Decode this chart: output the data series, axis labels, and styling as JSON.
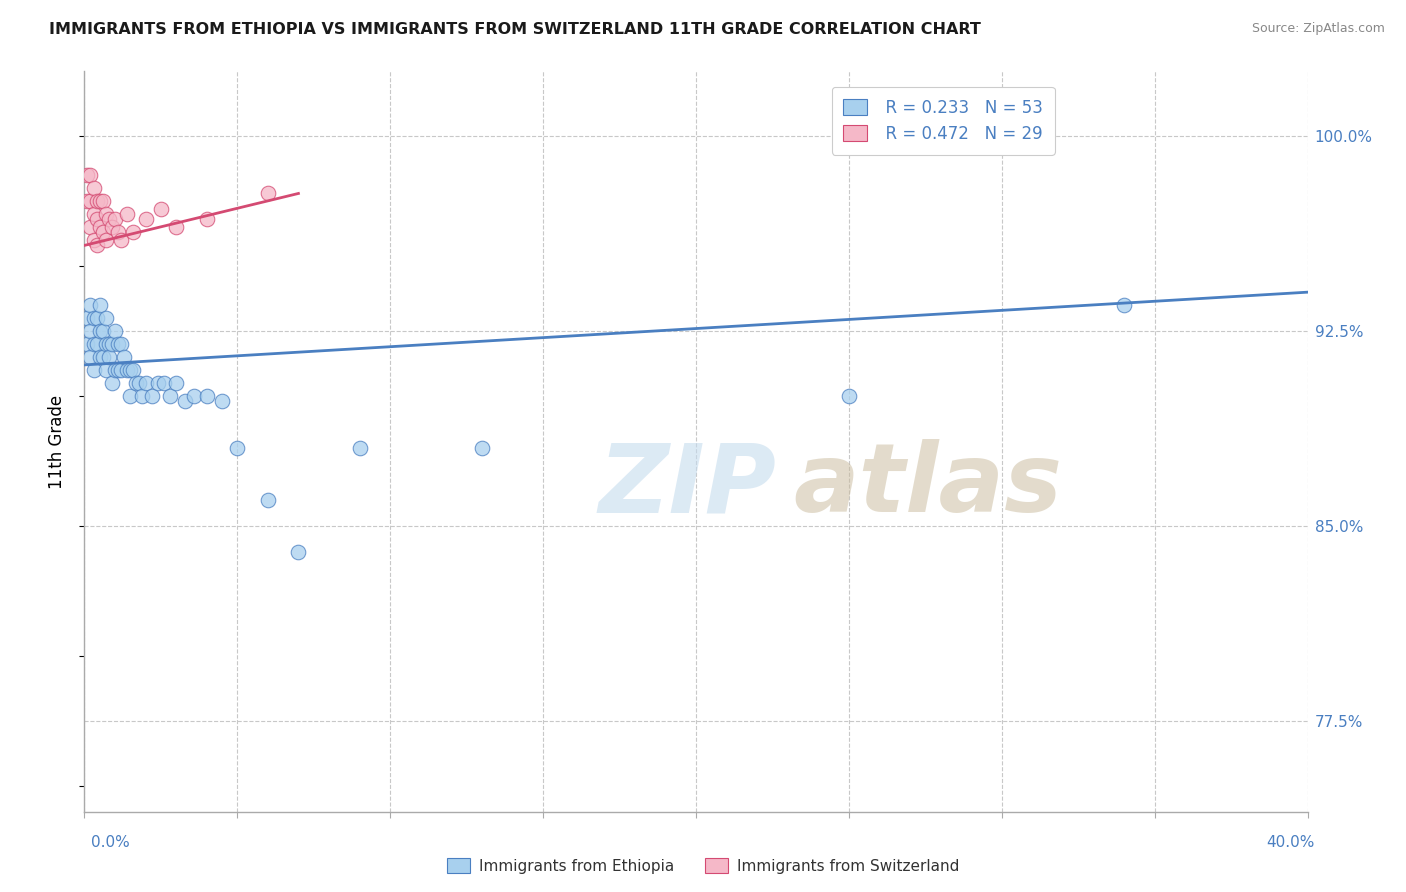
{
  "title": "IMMIGRANTS FROM ETHIOPIA VS IMMIGRANTS FROM SWITZERLAND 11TH GRADE CORRELATION CHART",
  "source": "Source: ZipAtlas.com",
  "ylabel": "11th Grade",
  "ylabel_right_ticks": [
    "100.0%",
    "92.5%",
    "85.0%",
    "77.5%"
  ],
  "ylabel_right_vals": [
    1.0,
    0.925,
    0.85,
    0.775
  ],
  "xmin": 0.0,
  "xmax": 0.4,
  "ymin": 0.74,
  "ymax": 1.025,
  "legend_r_eth": "R = 0.233",
  "legend_n_eth": "N = 53",
  "legend_r_swi": "R = 0.472",
  "legend_n_swi": "N = 29",
  "ethiopia_color": "#a8d0ee",
  "switzerland_color": "#f5b8c8",
  "trendline_ethiopia_color": "#4a7fc1",
  "trendline_switzerland_color": "#d44a72",
  "eth_x": [
    0.001,
    0.001,
    0.002,
    0.002,
    0.002,
    0.003,
    0.003,
    0.003,
    0.004,
    0.004,
    0.005,
    0.005,
    0.005,
    0.006,
    0.006,
    0.007,
    0.007,
    0.007,
    0.008,
    0.008,
    0.009,
    0.009,
    0.01,
    0.01,
    0.011,
    0.011,
    0.012,
    0.012,
    0.013,
    0.014,
    0.015,
    0.015,
    0.016,
    0.017,
    0.018,
    0.019,
    0.02,
    0.022,
    0.024,
    0.026,
    0.028,
    0.03,
    0.033,
    0.036,
    0.04,
    0.045,
    0.05,
    0.06,
    0.07,
    0.09,
    0.13,
    0.25,
    0.34
  ],
  "eth_y": [
    0.93,
    0.92,
    0.935,
    0.925,
    0.915,
    0.93,
    0.92,
    0.91,
    0.93,
    0.92,
    0.935,
    0.925,
    0.915,
    0.925,
    0.915,
    0.93,
    0.92,
    0.91,
    0.92,
    0.915,
    0.92,
    0.905,
    0.925,
    0.91,
    0.92,
    0.91,
    0.92,
    0.91,
    0.915,
    0.91,
    0.91,
    0.9,
    0.91,
    0.905,
    0.905,
    0.9,
    0.905,
    0.9,
    0.905,
    0.905,
    0.9,
    0.905,
    0.898,
    0.9,
    0.9,
    0.898,
    0.88,
    0.86,
    0.84,
    0.88,
    0.88,
    0.9,
    0.935
  ],
  "swi_x": [
    0.001,
    0.001,
    0.002,
    0.002,
    0.002,
    0.003,
    0.003,
    0.003,
    0.004,
    0.004,
    0.004,
    0.005,
    0.005,
    0.006,
    0.006,
    0.007,
    0.007,
    0.008,
    0.009,
    0.01,
    0.011,
    0.012,
    0.014,
    0.016,
    0.02,
    0.025,
    0.03,
    0.04,
    0.06
  ],
  "swi_y": [
    0.985,
    0.975,
    0.985,
    0.975,
    0.965,
    0.98,
    0.97,
    0.96,
    0.975,
    0.968,
    0.958,
    0.975,
    0.965,
    0.975,
    0.963,
    0.97,
    0.96,
    0.968,
    0.965,
    0.968,
    0.963,
    0.96,
    0.97,
    0.963,
    0.968,
    0.972,
    0.965,
    0.968,
    0.978
  ],
  "eth_trend_x0": 0.0,
  "eth_trend_x1": 0.4,
  "eth_trend_y0": 0.912,
  "eth_trend_y1": 0.94,
  "swi_trend_x0": 0.0,
  "swi_trend_x1": 0.07,
  "swi_trend_y0": 0.958,
  "swi_trend_y1": 0.978
}
